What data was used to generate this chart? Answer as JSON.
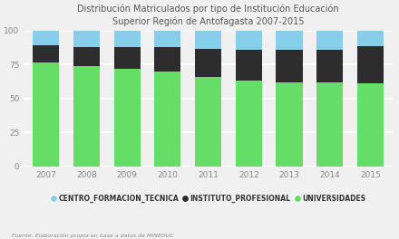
{
  "years": [
    2007,
    2008,
    2009,
    2010,
    2011,
    2012,
    2013,
    2014,
    2015
  ],
  "universidades": [
    76.5,
    73.5,
    72.0,
    70.0,
    65.5,
    63.0,
    62.0,
    62.0,
    61.0
  ],
  "instituto_profesional": [
    12.5,
    14.5,
    16.0,
    17.5,
    21.0,
    22.5,
    23.5,
    24.0,
    27.5
  ],
  "centro_formacion_tecnica": [
    11.0,
    12.0,
    12.0,
    12.5,
    13.5,
    14.5,
    14.5,
    14.0,
    11.5
  ],
  "color_univ": "#66dd66",
  "color_ip": "#2d2d2d",
  "color_cft": "#87CEEB",
  "title_line1": "Distribución Matriculados por tipo de Institución Educación",
  "title_line2": "Superior Región de Antofagasta 2007-2015",
  "bg_color": "#f0f0f0",
  "legend_labels": [
    "CENTRO_FORMACION_TECNICA",
    "INSTITUTO_PROFESIONAL",
    "UNIVERSIDADES"
  ],
  "footnote": "Fuente: Elaboración propia en base a datos de MINEDUC",
  "title_fontsize": 7.0,
  "tick_fontsize": 6.5,
  "legend_fontsize": 5.5,
  "footnote_fontsize": 4.5,
  "ylim": [
    0,
    100
  ],
  "yticks": [
    0,
    25,
    50,
    75,
    100
  ],
  "grid_color": "#ffffff",
  "tick_color": "#888888",
  "title_color": "#555555"
}
